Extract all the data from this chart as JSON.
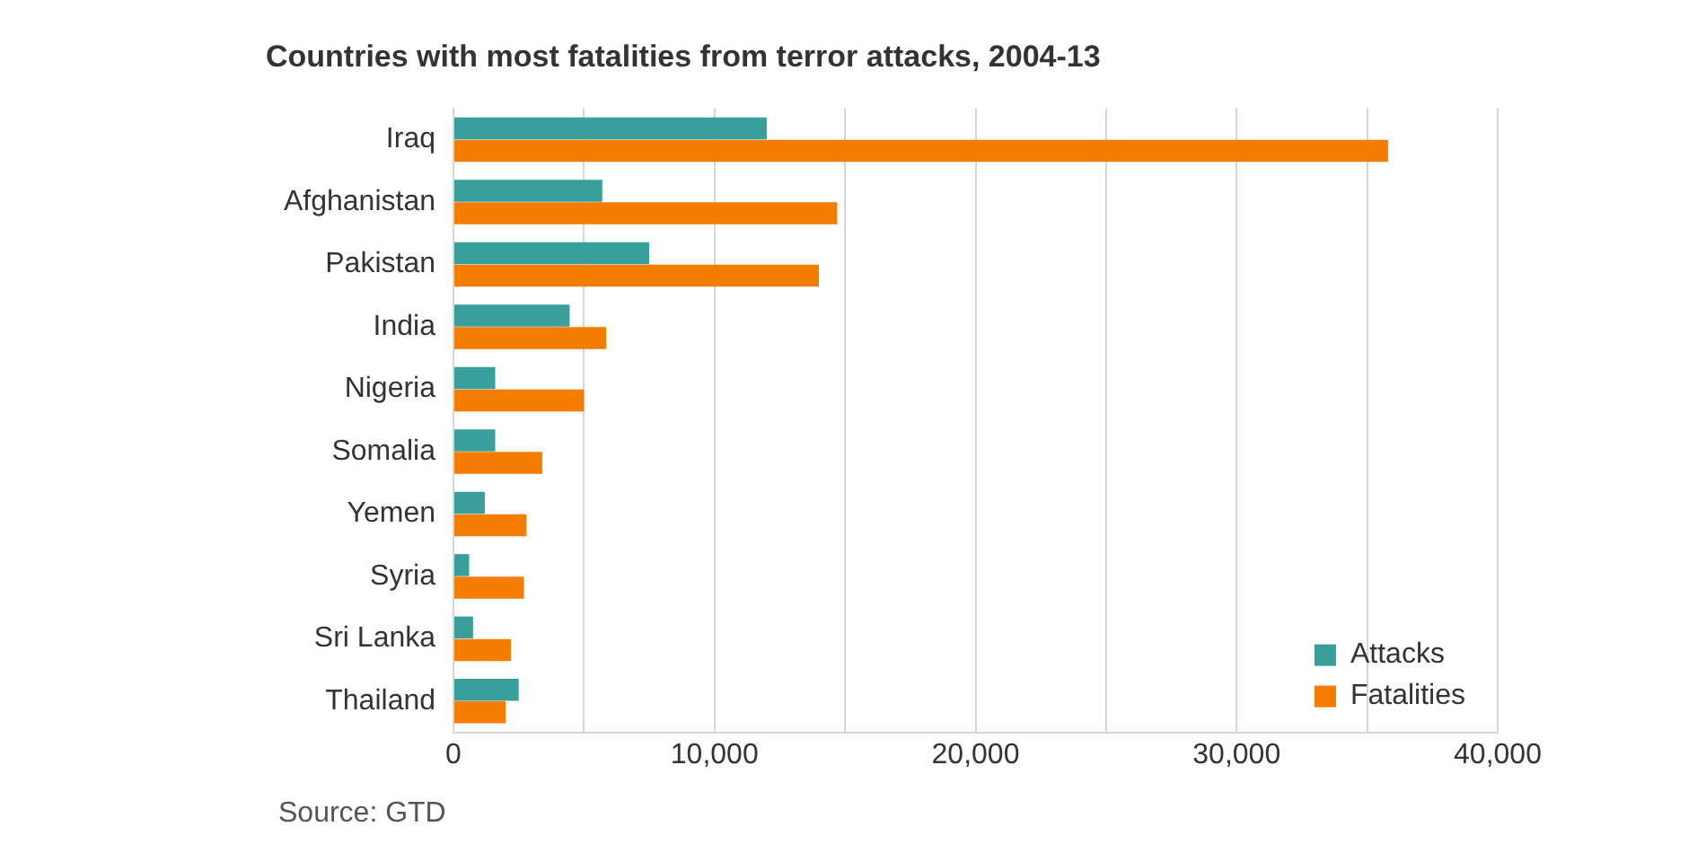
{
  "chart_data": {
    "type": "bar",
    "orientation": "horizontal",
    "title": "Countries with most fatalities from terror attacks, 2004-13",
    "annotations": [
      "Source: GTD"
    ],
    "categories": [
      "Iraq",
      "Afghanistan",
      "Pakistan",
      "India",
      "Nigeria",
      "Somalia",
      "Yemen",
      "Syria",
      "Sri Lanka",
      "Thailand"
    ],
    "series": [
      {
        "name": "Attacks",
        "color": "#3a9e9a",
        "values": [
          12000,
          5700,
          7500,
          4450,
          1600,
          1600,
          1200,
          600,
          750,
          2500
        ]
      },
      {
        "name": "Fatalities",
        "color": "#f47c00",
        "values": [
          35800,
          14700,
          14000,
          5850,
          5000,
          3400,
          2800,
          2700,
          2200,
          2000
        ]
      }
    ],
    "xlim": [
      0,
      40000
    ],
    "xticks": [
      0,
      {
        "value": 5000,
        "label": null
      },
      {
        "value": 10000,
        "label": "10,000"
      },
      {
        "value": 15000,
        "label": null
      },
      {
        "value": 20000,
        "label": "20,000"
      },
      {
        "value": 25000,
        "label": null
      },
      {
        "value": 30000,
        "label": "30,000"
      },
      {
        "value": 35000,
        "label": null
      },
      {
        "value": 40000,
        "label": "40,000"
      }
    ],
    "grid": "x",
    "legend": "bottom right"
  }
}
